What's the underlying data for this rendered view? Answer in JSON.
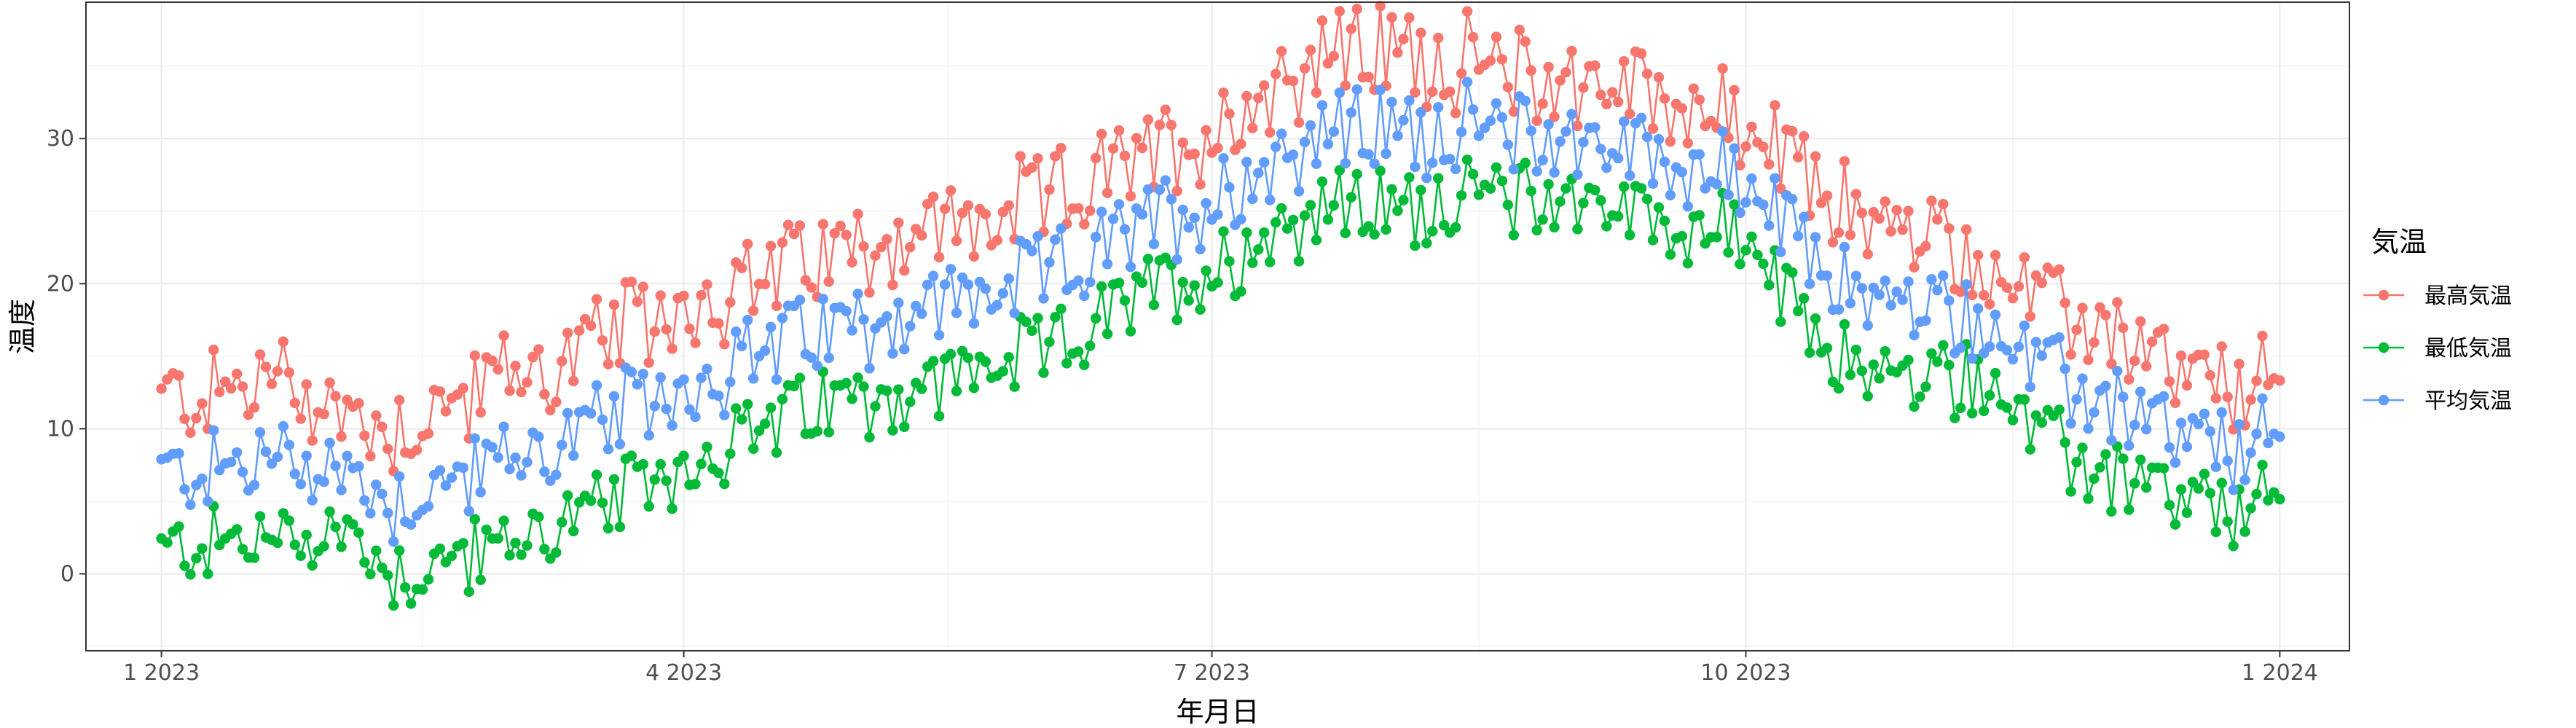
{
  "chart_data": {
    "type": "line",
    "title": "",
    "xlabel": "年月日",
    "ylabel": "温度",
    "x_range": [
      "2023-01-01",
      "2024-01-01"
    ],
    "xlim": [
      "2022-12-19",
      "2024-01-13"
    ],
    "ylim": [
      -5.3,
      39.4
    ],
    "grid": true,
    "markers": true,
    "x_ticks": [
      {
        "date": "2023-01-01",
        "label": "1 2023"
      },
      {
        "date": "2023-04-01",
        "label": "4 2023"
      },
      {
        "date": "2023-07-01",
        "label": "7 2023"
      },
      {
        "date": "2023-10-01",
        "label": "10 2023"
      },
      {
        "date": "2024-01-01",
        "label": "1 2024"
      }
    ],
    "y_ticks": [
      0,
      10,
      20,
      30
    ],
    "legend": {
      "title": "気温",
      "position": "right"
    },
    "x_sample_points": [
      "2023-01-01",
      "2023-01-11",
      "2023-01-21",
      "2023-02-01",
      "2023-02-11",
      "2023-02-21",
      "2023-03-01",
      "2023-03-11",
      "2023-03-21",
      "2023-04-01",
      "2023-04-11",
      "2023-04-21",
      "2023-05-01",
      "2023-05-11",
      "2023-05-21",
      "2023-06-01",
      "2023-06-11",
      "2023-06-21",
      "2023-07-01",
      "2023-07-11",
      "2023-07-21",
      "2023-08-01",
      "2023-08-11",
      "2023-08-21",
      "2023-09-01",
      "2023-09-11",
      "2023-09-21",
      "2023-10-01",
      "2023-10-11",
      "2023-10-21",
      "2023-11-01",
      "2023-11-11",
      "2023-11-21",
      "2023-12-01",
      "2023-12-11",
      "2023-12-21",
      "2024-01-01"
    ],
    "series": [
      {
        "name": "最高気温",
        "color": "#F8766D",
        "values": [
          12.0,
          12.5,
          13.5,
          11.0,
          10.0,
          12.0,
          13.5,
          14.5,
          16.5,
          18.5,
          19.5,
          21.5,
          22.5,
          23.5,
          24.0,
          25.5,
          27.0,
          29.0,
          30.5,
          33.5,
          36.0,
          36.0,
          35.5,
          34.5,
          34.0,
          33.5,
          32.5,
          30.5,
          27.5,
          24.5,
          23.0,
          21.5,
          18.0,
          17.0,
          14.5,
          12.5,
          13.0
        ]
      },
      {
        "name": "最低気温",
        "color": "#00BA38",
        "values": [
          1.5,
          2.0,
          2.5,
          3.0,
          0.0,
          1.0,
          2.0,
          3.5,
          5.0,
          7.5,
          9.5,
          11.0,
          12.0,
          12.5,
          14.0,
          15.0,
          17.0,
          19.5,
          21.0,
          23.5,
          25.5,
          25.0,
          26.0,
          26.0,
          26.0,
          25.0,
          24.0,
          23.0,
          17.0,
          14.0,
          13.0,
          14.0,
          9.0,
          7.0,
          5.5,
          4.0,
          5.0
        ]
      },
      {
        "name": "平均気温",
        "color": "#619CFF",
        "values": [
          6.0,
          6.5,
          8.0,
          6.5,
          4.5,
          6.0,
          7.5,
          9.5,
          11.5,
          13.5,
          15.0,
          16.5,
          17.0,
          18.0,
          19.0,
          20.5,
          22.0,
          24.0,
          25.5,
          28.0,
          30.0,
          30.0,
          30.0,
          29.5,
          29.0,
          28.5,
          28.0,
          26.5,
          22.0,
          19.0,
          18.0,
          17.5,
          13.0,
          12.0,
          10.0,
          8.0,
          9.0
        ]
      }
    ]
  }
}
